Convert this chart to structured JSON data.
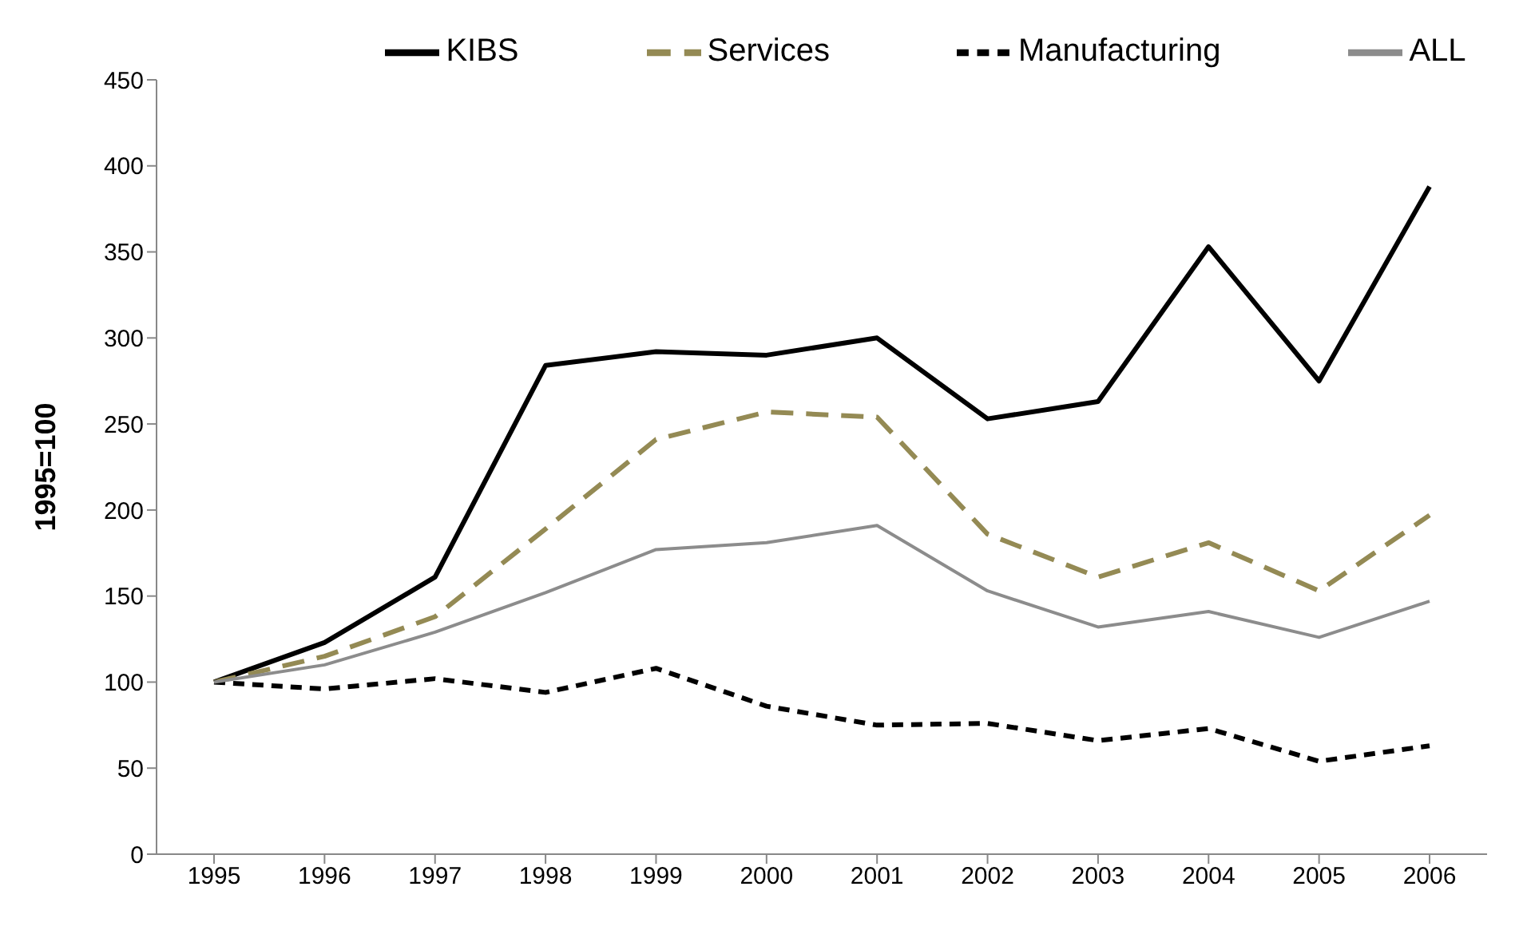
{
  "chart_data": {
    "type": "line",
    "ylabel": "1995=100",
    "categories": [
      "1995",
      "1996",
      "1997",
      "1998",
      "1999",
      "2000",
      "2001",
      "2002",
      "2003",
      "2004",
      "2005",
      "2006"
    ],
    "series": [
      {
        "name": "KIBS",
        "color": "#000000",
        "line_style": "solid",
        "values": [
          100,
          123,
          161,
          284,
          292,
          290,
          300,
          253,
          263,
          353,
          275,
          388
        ]
      },
      {
        "name": "Services",
        "color": "#948a54",
        "line_style": "dashed",
        "values": [
          100,
          115,
          138,
          189,
          241,
          257,
          254,
          186,
          161,
          181,
          153,
          197
        ]
      },
      {
        "name": "Manufacturing",
        "color": "#000000",
        "line_style": "dotted",
        "values": [
          100,
          96,
          102,
          94,
          108,
          86,
          75,
          76,
          66,
          73,
          54,
          63
        ]
      },
      {
        "name": "ALL",
        "color": "#8c8c8c",
        "line_style": "solid",
        "values": [
          100,
          110,
          129,
          152,
          177,
          181,
          191,
          153,
          132,
          141,
          126,
          147
        ]
      }
    ],
    "ylim": [
      0,
      450
    ],
    "yticks": [
      0,
      50,
      100,
      150,
      200,
      250,
      300,
      350,
      400,
      450
    ],
    "grid": false,
    "legend": "top",
    "marker": "none"
  }
}
